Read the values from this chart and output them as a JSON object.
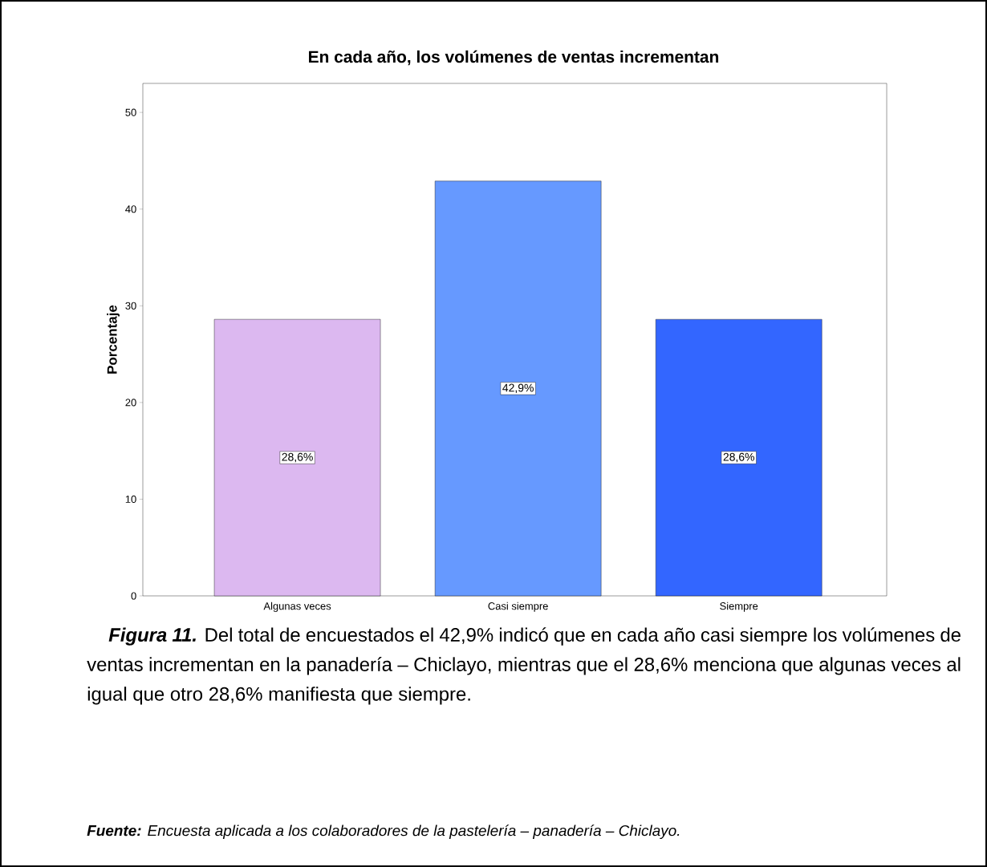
{
  "chart_data": {
    "type": "bar",
    "title": "En cada año, los volúmenes de ventas incrementan",
    "ylabel": "Porcentaje",
    "categories": [
      "Algunas veces",
      "Casi siempre",
      "Siempre"
    ],
    "values": [
      28.6,
      42.9,
      28.6
    ],
    "colors": [
      "#dcb8f0",
      "#6699ff",
      "#3366ff"
    ],
    "value_labels": [
      "28,6%",
      "42,9%",
      "28,6%"
    ],
    "ylim": [
      0,
      53
    ],
    "yticks": [
      0,
      10,
      20,
      30,
      40,
      50
    ],
    "annotations": [
      "Figura 11.",
      "Del total de encuestados el 42,9% indicó que en cada año casi siempre los volúmenes de ventas incrementan en la panadería – Chiclayo, mientras que el 28,6% menciona que algunas veces al igual que otro 28,6% manifiesta que siempre.",
      "Fuente:",
      "Encuesta aplicada a los colaboradores de la pastelería – panadería – Chiclayo."
    ]
  }
}
